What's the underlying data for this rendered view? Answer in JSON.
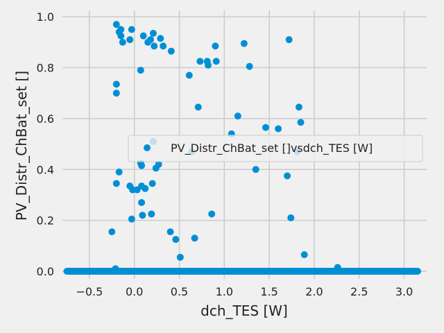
{
  "chart_data": {
    "type": "scatter",
    "xlabel": "dch_TES [W]",
    "ylabel": "PV_Distr_ChBat_set []",
    "xlim": [
      -0.8,
      3.25
    ],
    "ylim": [
      -0.03,
      1.025
    ],
    "xticks": [
      -0.5,
      0.0,
      0.5,
      1.0,
      1.5,
      2.0,
      2.5,
      3.0
    ],
    "xtick_labels": [
      "−0.5",
      "0.0",
      "0.5",
      "1.0",
      "1.5",
      "2.0",
      "2.5",
      "3.0"
    ],
    "yticks": [
      0.0,
      0.2,
      0.4,
      0.6,
      0.8,
      1.0
    ],
    "ytick_labels": [
      "0.0",
      "0.2",
      "0.4",
      "0.6",
      "0.8",
      "1.0"
    ],
    "grid": true,
    "legend": {
      "placement": "center-right",
      "entries": [
        "PV_Distr_ChBat_set []vsdch_TES [W]"
      ]
    },
    "colors": {
      "marker": "#008fd5",
      "grid": "#cbcbcb",
      "background": "#f0f0f0"
    },
    "series": [
      {
        "name": "PV_Distr_ChBat_set []vsdch_TES [W]",
        "points": [
          [
            -0.2,
            0.97
          ],
          [
            -0.17,
            0.94
          ],
          [
            -0.15,
            0.95
          ],
          [
            -0.13,
            0.9
          ],
          [
            -0.15,
            0.925
          ],
          [
            -0.05,
            0.91
          ],
          [
            -0.03,
            0.95
          ],
          [
            0.1,
            0.925
          ],
          [
            0.15,
            0.9
          ],
          [
            0.18,
            0.91
          ],
          [
            0.21,
            0.935
          ],
          [
            0.22,
            0.885
          ],
          [
            0.29,
            0.915
          ],
          [
            0.32,
            0.885
          ],
          [
            0.41,
            0.865
          ],
          [
            0.07,
            0.79
          ],
          [
            0.61,
            0.77
          ],
          [
            0.73,
            0.825
          ],
          [
            0.81,
            0.825
          ],
          [
            0.82,
            0.81
          ],
          [
            0.91,
            0.825
          ],
          [
            0.9,
            0.885
          ],
          [
            1.22,
            0.895
          ],
          [
            1.28,
            0.805
          ],
          [
            1.72,
            0.91
          ],
          [
            -0.2,
            0.735
          ],
          [
            -0.2,
            0.7
          ],
          [
            0.71,
            0.645
          ],
          [
            1.15,
            0.61
          ],
          [
            1.46,
            0.565
          ],
          [
            1.6,
            0.56
          ],
          [
            1.83,
            0.645
          ],
          [
            1.85,
            0.585
          ],
          [
            1.08,
            0.54
          ],
          [
            0.21,
            0.51
          ],
          [
            0.64,
            0.47
          ],
          [
            1.81,
            0.47
          ],
          [
            0.07,
            0.425
          ],
          [
            0.08,
            0.415
          ],
          [
            0.27,
            0.42
          ],
          [
            0.24,
            0.405
          ],
          [
            1.35,
            0.4
          ],
          [
            1.7,
            0.375
          ],
          [
            -0.17,
            0.39
          ],
          [
            -0.2,
            0.345
          ],
          [
            -0.05,
            0.335
          ],
          [
            -0.02,
            0.32
          ],
          [
            0.03,
            0.32
          ],
          [
            0.08,
            0.335
          ],
          [
            0.12,
            0.325
          ],
          [
            0.2,
            0.345
          ],
          [
            0.08,
            0.27
          ],
          [
            -0.03,
            0.205
          ],
          [
            0.09,
            0.22
          ],
          [
            0.19,
            0.225
          ],
          [
            0.86,
            0.225
          ],
          [
            1.74,
            0.21
          ],
          [
            -0.25,
            0.155
          ],
          [
            0.4,
            0.155
          ],
          [
            0.46,
            0.125
          ],
          [
            0.67,
            0.13
          ],
          [
            0.51,
            0.055
          ],
          [
            1.89,
            0.065
          ],
          [
            -0.21,
            0.01
          ],
          [
            2.26,
            0.015
          ]
        ],
        "zero_range": [
          -0.75,
          3.15
        ]
      }
    ]
  }
}
